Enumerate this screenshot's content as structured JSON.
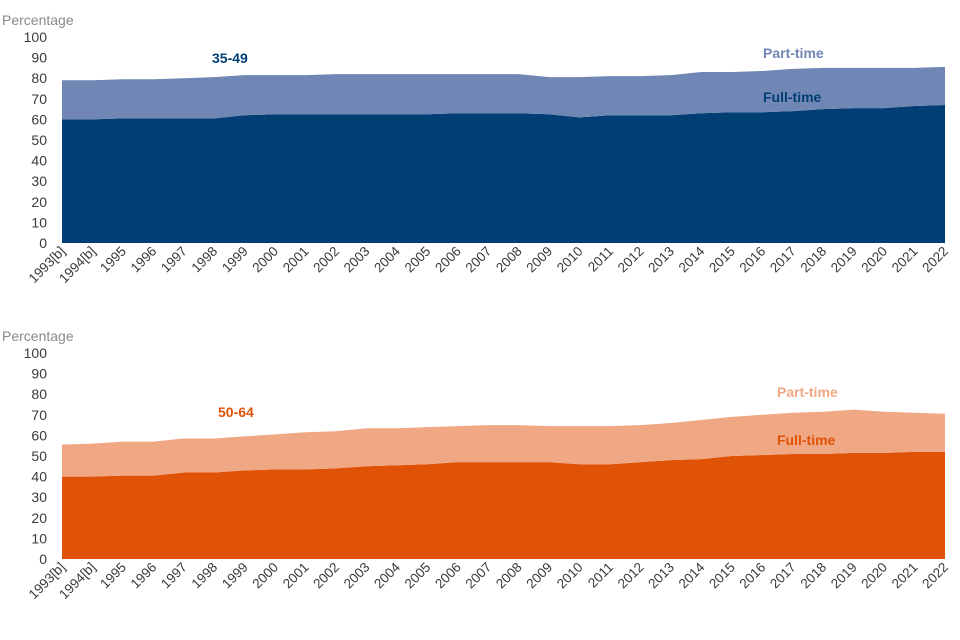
{
  "chart_data": [
    {
      "type": "area",
      "title": "35-49",
      "ylabel": "Percentage",
      "ylim": [
        0,
        100
      ],
      "yticks": [
        0,
        10,
        20,
        30,
        40,
        50,
        60,
        70,
        80,
        90,
        100
      ],
      "categories": [
        "1993[b]",
        "1994[b]",
        "1995",
        "1996",
        "1997",
        "1998",
        "1999",
        "2000",
        "2001",
        "2002",
        "2003",
        "2004",
        "2005",
        "2006",
        "2007",
        "2008",
        "2009",
        "2010",
        "2011",
        "2012",
        "2013",
        "2014",
        "2015",
        "2016",
        "2017",
        "2018",
        "2019",
        "2020",
        "2021",
        "2022"
      ],
      "series": [
        {
          "name": "Full-time",
          "color": "#003e74",
          "values": [
            60,
            60,
            60.5,
            60.5,
            60.5,
            60.5,
            62,
            62.5,
            62.5,
            62.5,
            62.5,
            62.5,
            62.5,
            63,
            63,
            63,
            62.5,
            61,
            62,
            62,
            62,
            63,
            63.5,
            63.5,
            64,
            65,
            65.5,
            65.5,
            66.5,
            67
          ]
        },
        {
          "name": "Part-time",
          "color": "#7086b4",
          "values": [
            19,
            19,
            19,
            19,
            19.5,
            20,
            19.5,
            19,
            19,
            19.5,
            19.5,
            19.5,
            19.5,
            19,
            19,
            19,
            18,
            19.5,
            19,
            19,
            19.5,
            20,
            19.5,
            20,
            20.5,
            20,
            19.5,
            19.5,
            18.5,
            18.5
          ]
        }
      ],
      "labels": {
        "title": "35-49",
        "part_time": "Part-time",
        "full_time": "Full-time"
      },
      "label_colors": {
        "title": "#003e74",
        "part_time": "#7086b4",
        "full_time": "#003e74"
      }
    },
    {
      "type": "area",
      "title": "50-64",
      "ylabel": "Percentage",
      "ylim": [
        0,
        100
      ],
      "yticks": [
        0,
        10,
        20,
        30,
        40,
        50,
        60,
        70,
        80,
        90,
        100
      ],
      "categories": [
        "1993[b]",
        "1994[b]",
        "1995",
        "1996",
        "1997",
        "1998",
        "1999",
        "2000",
        "2001",
        "2002",
        "2003",
        "2004",
        "2005",
        "2006",
        "2007",
        "2008",
        "2009",
        "2010",
        "2011",
        "2012",
        "2013",
        "2014",
        "2015",
        "2016",
        "2017",
        "2018",
        "2019",
        "2020",
        "2021",
        "2022"
      ],
      "series": [
        {
          "name": "Full-time",
          "color": "#e05206",
          "values": [
            40,
            40,
            40.5,
            40.5,
            42,
            42,
            43,
            43.5,
            43.5,
            44,
            45,
            45.5,
            46,
            47,
            47,
            47,
            47,
            46,
            46,
            47,
            48,
            48.5,
            50,
            50.5,
            51,
            51,
            51.5,
            51.5,
            52,
            52
          ]
        },
        {
          "name": "Part-time",
          "color": "#f0a784",
          "values": [
            15.5,
            16,
            16.5,
            16.5,
            16.5,
            16.5,
            16.5,
            17,
            18,
            18,
            18.5,
            18,
            18,
            17.5,
            18,
            18,
            17.5,
            18.5,
            18.5,
            18,
            18,
            19,
            19,
            19.5,
            20,
            20.5,
            21,
            20,
            19,
            18.5
          ]
        }
      ],
      "labels": {
        "title": "50-64",
        "part_time": "Part-time",
        "full_time": "Full-time"
      },
      "label_colors": {
        "title": "#e05206",
        "part_time": "#f0a784",
        "full_time": "#e05206"
      }
    }
  ]
}
